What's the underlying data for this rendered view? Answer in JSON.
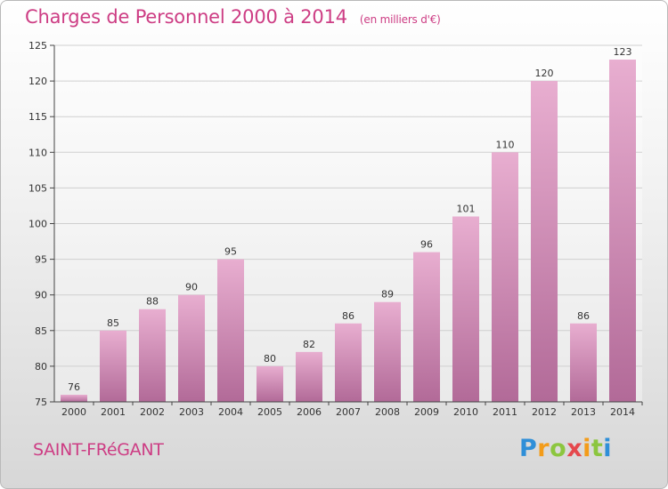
{
  "header": {
    "title": "Charges de Personnel 2000 à 2014",
    "subtitle": "(en milliers d'€)"
  },
  "footer": {
    "commune": "SAINT-FRéGANT",
    "logo_text": "Proxiti"
  },
  "colors": {
    "accent": "#cd3d84",
    "bar_light": "#e8aed0",
    "bar_dark": "#b26a98"
  },
  "chart_data": {
    "type": "bar",
    "title": "Charges de Personnel 2000 à 2014",
    "subtitle": "(en milliers d'€)",
    "categories": [
      "2000",
      "2001",
      "2002",
      "2003",
      "2004",
      "2005",
      "2006",
      "2007",
      "2008",
      "2009",
      "2010",
      "2011",
      "2012",
      "2013",
      "2014"
    ],
    "values": [
      76,
      85,
      88,
      90,
      95,
      80,
      82,
      86,
      89,
      96,
      101,
      110,
      120,
      86,
      123
    ],
    "ylim": [
      75,
      125
    ],
    "yticks": [
      75,
      80,
      85,
      90,
      95,
      100,
      105,
      110,
      115,
      120,
      125
    ],
    "grid": true,
    "xlabel": "",
    "ylabel": ""
  }
}
